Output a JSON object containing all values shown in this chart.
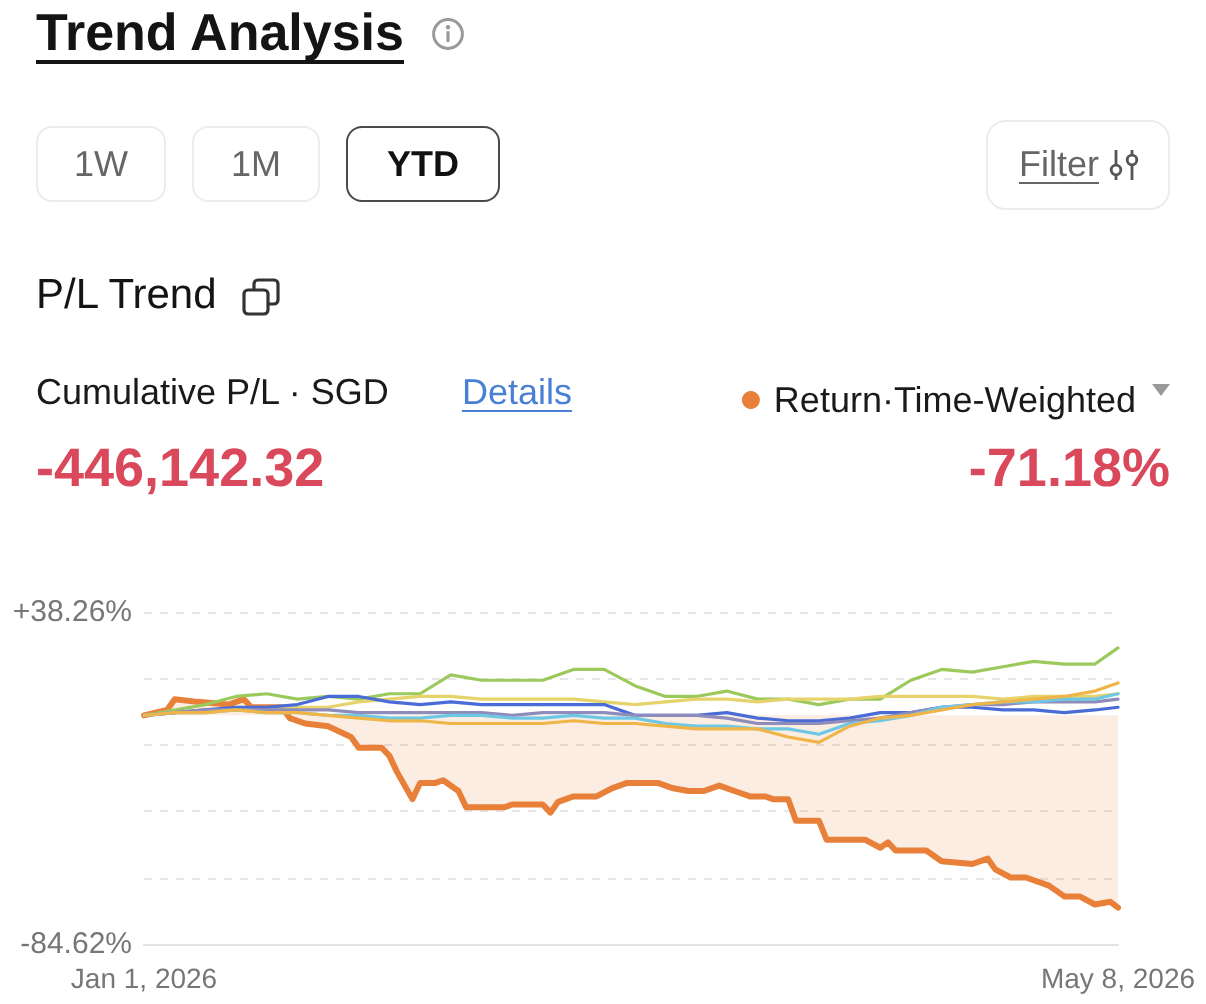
{
  "chart_data": {
    "type": "line",
    "title": "Trend Analysis",
    "subtitle": "P/L Trend",
    "annotations": [
      "1W",
      "1M",
      "YTD",
      "Filter",
      "Cumulative P/L · SGD",
      "Details",
      "-446,142.32",
      "-71.18%"
    ],
    "x": [
      "2026-01-01",
      "2026-01-05",
      "2026-01-09",
      "2026-01-13",
      "2026-01-17",
      "2026-01-21",
      "2026-01-25",
      "2026-01-29",
      "2026-02-02",
      "2026-02-06",
      "2026-02-10",
      "2026-02-14",
      "2026-02-18",
      "2026-02-22",
      "2026-02-26",
      "2026-03-02",
      "2026-03-06",
      "2026-03-10",
      "2026-03-14",
      "2026-03-18",
      "2026-03-22",
      "2026-03-26",
      "2026-03-30",
      "2026-04-03",
      "2026-04-07",
      "2026-04-11",
      "2026-04-15",
      "2026-04-19",
      "2026-04-23",
      "2026-04-27",
      "2026-05-01",
      "2026-05-05",
      "2026-05-08"
    ],
    "series": [
      {
        "color": "#9cc95c",
        "values": [
          0,
          2,
          4,
          7,
          8,
          6,
          7,
          6,
          8,
          8,
          15,
          13,
          13,
          13,
          17,
          17,
          11,
          7,
          7,
          9,
          6,
          6,
          4,
          6,
          6,
          13,
          17,
          16,
          18,
          20,
          19,
          19,
          25
        ]
      },
      {
        "color": "#e6d36b",
        "values": [
          0,
          1,
          2,
          2,
          2,
          3,
          3,
          5,
          6,
          7,
          7,
          6,
          6,
          6,
          6,
          5,
          4,
          5,
          6,
          6,
          5,
          6,
          6,
          6,
          7,
          7,
          7,
          7,
          6,
          7,
          7,
          7,
          8
        ]
      },
      {
        "color": "#4a6cd6",
        "values": [
          0,
          1,
          2,
          3,
          3,
          4,
          7,
          7,
          5,
          4,
          5,
          4,
          4,
          4,
          4,
          4,
          0,
          0,
          0,
          1,
          -1,
          -2,
          -2,
          -1,
          1,
          1,
          3,
          3,
          2,
          2,
          1,
          2,
          3
        ]
      },
      {
        "color": "#8e8cba",
        "values": [
          0,
          1,
          2,
          2,
          2,
          2,
          2,
          1,
          1,
          1,
          1,
          1,
          0,
          1,
          1,
          1,
          0,
          0,
          0,
          -1,
          -3,
          -3,
          -3,
          -2,
          -1,
          1,
          3,
          4,
          4,
          5,
          5,
          5,
          6
        ]
      },
      {
        "color": "#6fc8e3",
        "values": [
          0,
          1,
          1,
          2,
          1,
          1,
          0,
          0,
          -1,
          -1,
          0,
          0,
          -1,
          -1,
          0,
          -1,
          -1,
          -3,
          -4,
          -4,
          -5,
          -5,
          -7,
          -3,
          -2,
          0,
          3,
          4,
          5,
          5,
          6,
          6,
          8
        ]
      },
      {
        "color": "#efb548",
        "values": [
          0,
          1,
          1,
          2,
          1,
          1,
          0,
          -1,
          -2,
          -2,
          -3,
          -3,
          -3,
          -3,
          -2,
          -3,
          -3,
          -4,
          -5,
          -5,
          -5,
          -8,
          -10,
          -4,
          -1,
          0,
          2,
          4,
          5,
          6,
          7,
          9,
          12
        ]
      },
      {
        "name": "Return·Time-Weighted",
        "type": "area",
        "color": "#e8803a",
        "x": [
          "2026-01-01",
          "2026-01-04",
          "2026-01-05",
          "2026-01-08",
          "2026-01-12",
          "2026-01-14",
          "2026-01-15",
          "2026-01-19",
          "2026-01-20",
          "2026-01-22",
          "2026-01-25",
          "2026-01-28",
          "2026-01-29",
          "2026-02-01",
          "2026-02-02",
          "2026-02-03",
          "2026-02-04",
          "2026-02-05",
          "2026-02-06",
          "2026-02-08",
          "2026-02-09",
          "2026-02-11",
          "2026-02-12",
          "2026-02-17",
          "2026-02-18",
          "2026-02-22",
          "2026-02-23",
          "2026-02-24",
          "2026-02-26",
          "2026-03-01",
          "2026-03-03",
          "2026-03-05",
          "2026-03-09",
          "2026-03-11",
          "2026-03-13",
          "2026-03-15",
          "2026-03-17",
          "2026-03-19",
          "2026-03-21",
          "2026-03-23",
          "2026-03-24",
          "2026-03-26",
          "2026-03-27",
          "2026-03-30",
          "2026-03-31",
          "2026-04-05",
          "2026-04-07",
          "2026-04-08",
          "2026-04-09",
          "2026-04-13",
          "2026-04-15",
          "2026-04-19",
          "2026-04-21",
          "2026-04-22",
          "2026-04-24",
          "2026-04-26",
          "2026-04-29",
          "2026-05-01",
          "2026-05-03",
          "2026-05-05",
          "2026-05-07",
          "2026-05-08"
        ],
        "values": [
          0,
          2,
          6,
          5,
          4,
          6,
          3,
          3,
          -1,
          -3,
          -4,
          -8,
          -12,
          -12,
          -15,
          -21,
          -26,
          -31,
          -25,
          -25,
          -24,
          -28,
          -34,
          -34,
          -33,
          -33,
          -36,
          -32,
          -30,
          -30,
          -27,
          -25,
          -25,
          -27,
          -28,
          -28,
          -26,
          -28,
          -30,
          -30,
          -31,
          -31,
          -39,
          -39,
          -46,
          -46,
          -49,
          -47,
          -50,
          -50,
          -54,
          -55,
          -53,
          -57,
          -60,
          -60,
          -63,
          -67,
          -67,
          -70,
          -69,
          -71.18
        ]
      }
    ],
    "xlim": [
      "2026-01-01",
      "2026-05-08"
    ],
    "xticks": [
      {
        "value": "2026-01-01",
        "label": "Jan 1, 2026"
      },
      {
        "value": "2026-05-08",
        "label": "May 8, 2026"
      }
    ],
    "ylim": [
      -84.62,
      38.26
    ],
    "yticks": [
      {
        "value": 38.26,
        "label": "+38.26%"
      },
      {
        "value": 13.68,
        "label": null
      },
      {
        "value": -10.89,
        "label": null
      },
      {
        "value": -35.47,
        "label": null
      },
      {
        "value": -60.04,
        "label": null
      },
      {
        "value": -84.62,
        "label": "-84.62%"
      }
    ],
    "grid": "y",
    "legend": "top right"
  }
}
